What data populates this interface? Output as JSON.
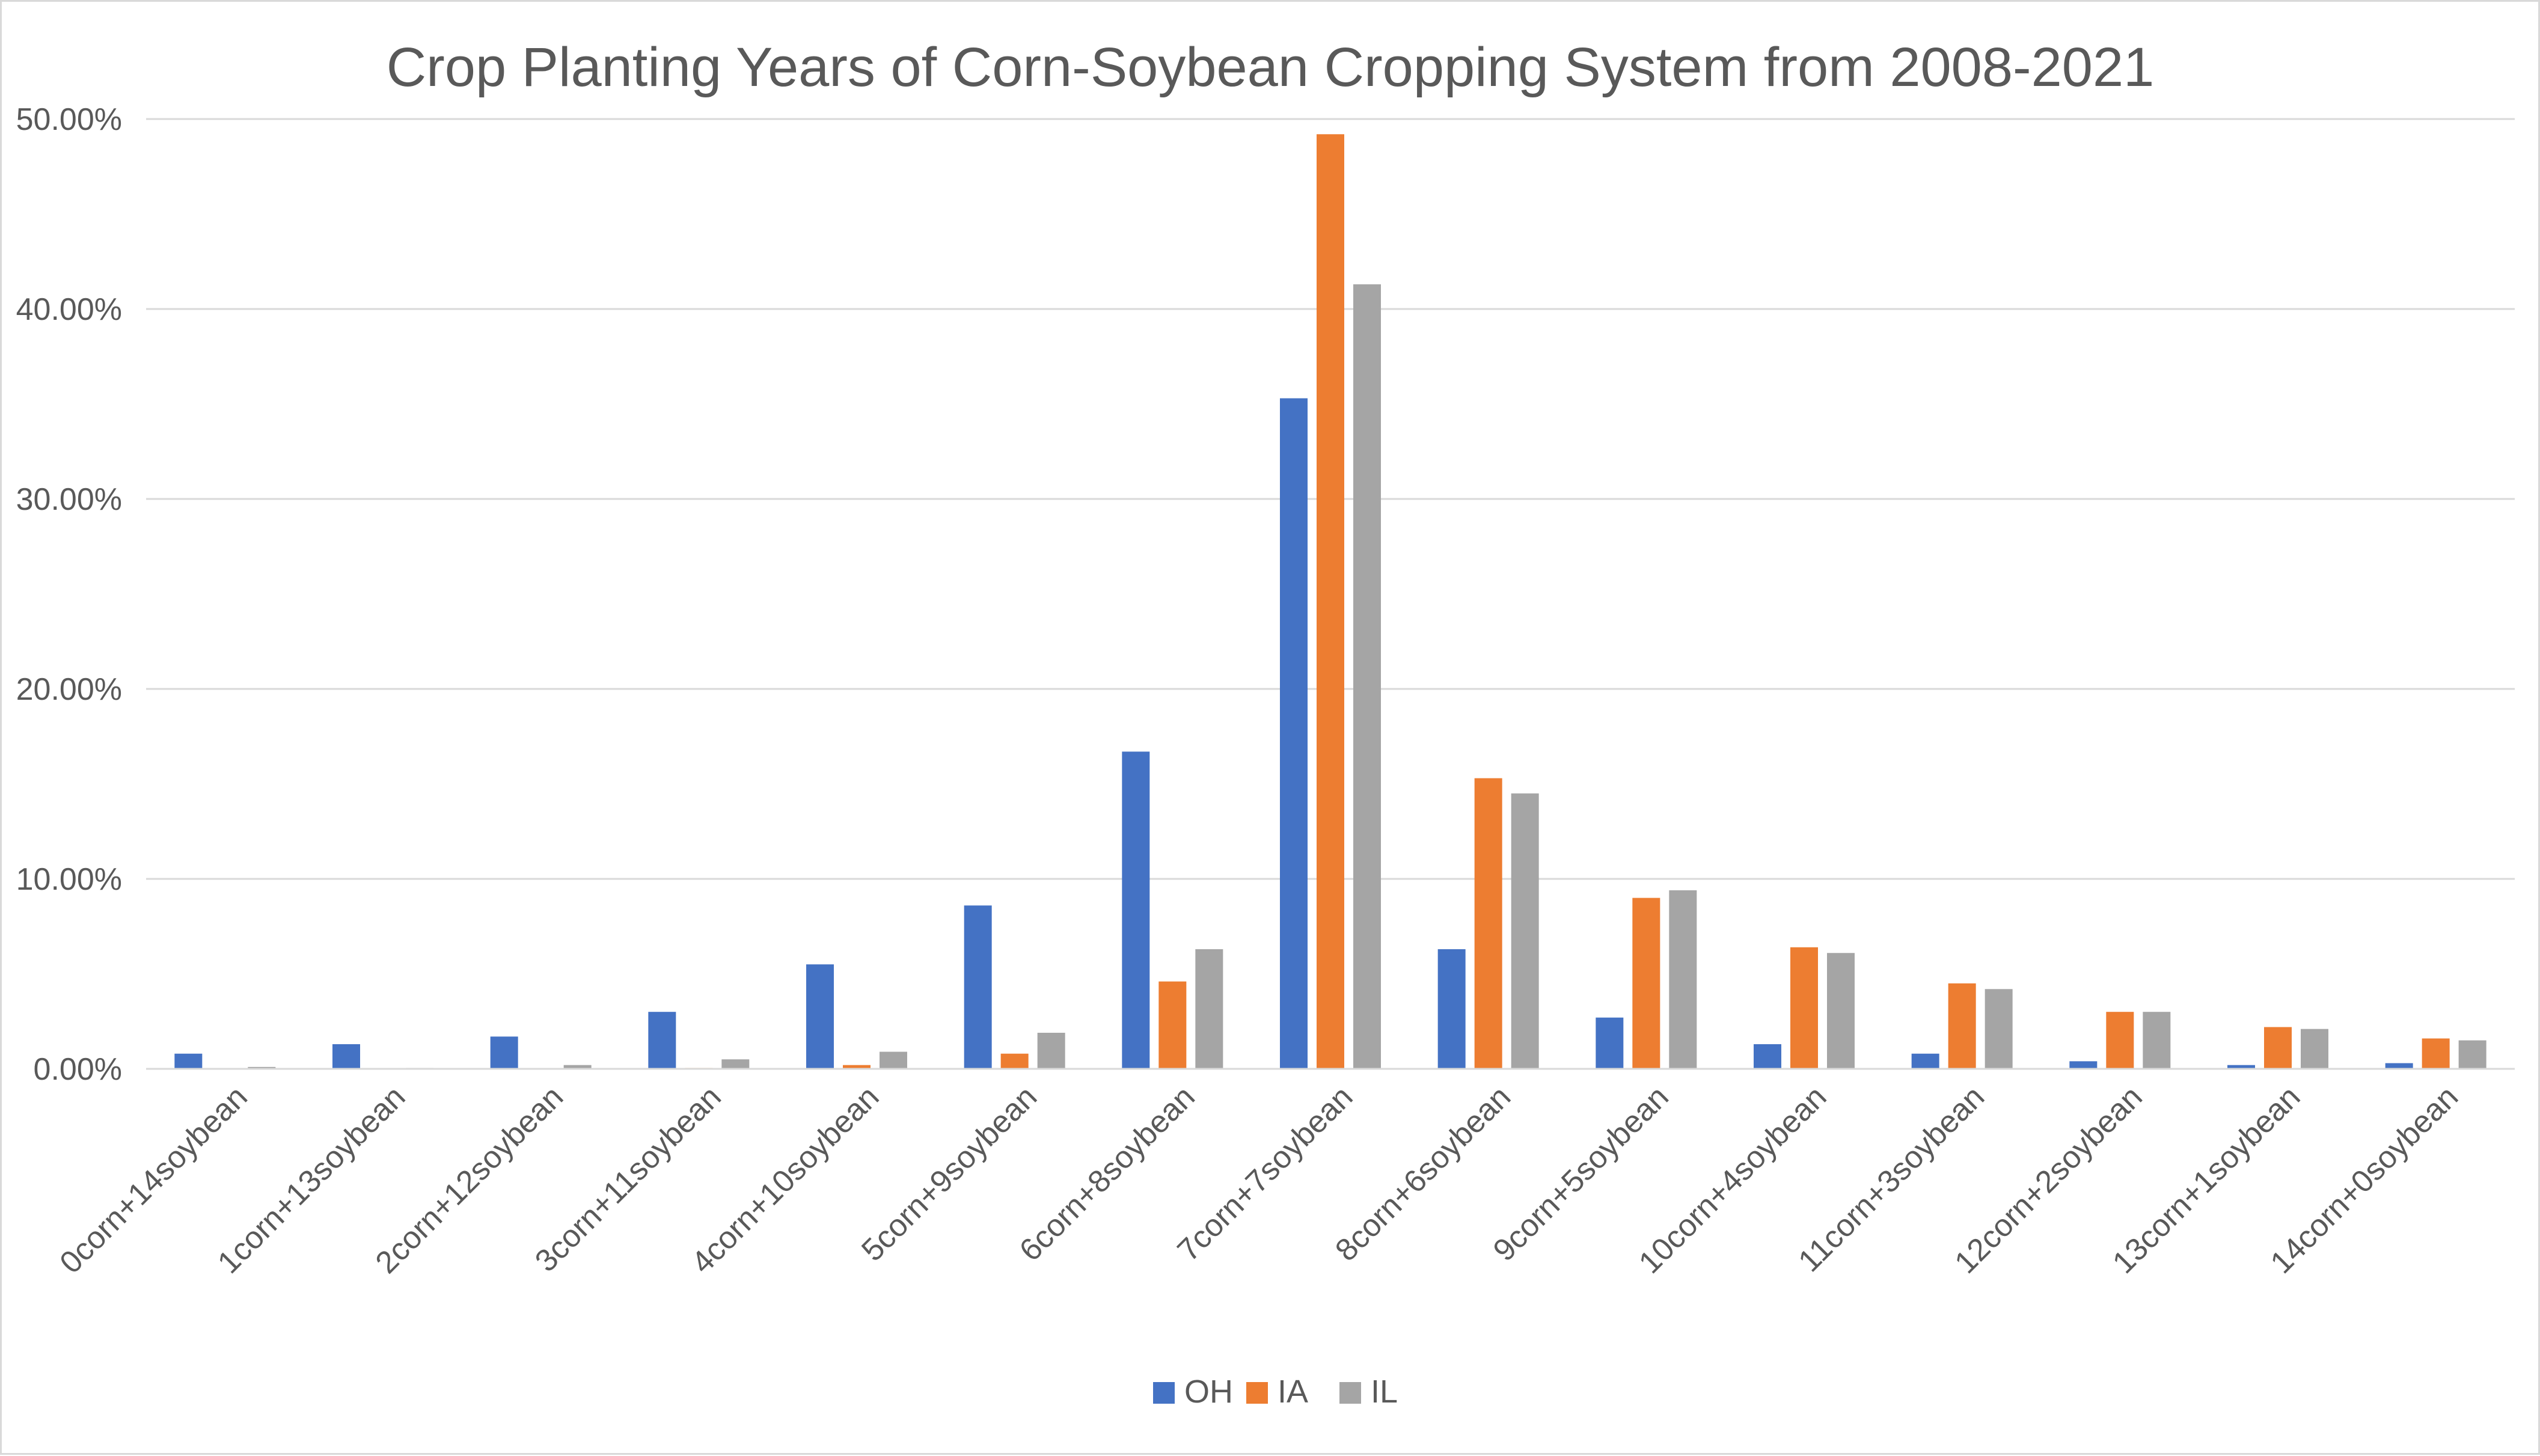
{
  "chart_data": {
    "type": "bar",
    "title": "Crop Planting Years of Corn-Soybean Cropping System from 2008-2021",
    "xlabel": "",
    "ylabel": "",
    "ylim": [
      0,
      0.5
    ],
    "y_ticks": [
      0,
      0.1,
      0.2,
      0.3,
      0.4,
      0.5
    ],
    "y_tick_labels": [
      "0.00%",
      "10.00%",
      "20.00%",
      "30.00%",
      "40.00%",
      "50.00%"
    ],
    "grid": true,
    "legend_position": "bottom",
    "categories": [
      "0corn+14soybean",
      "1corn+13soybean",
      "2corn+12soybean",
      "3corn+11soybean",
      "4corn+10soybean",
      "5corn+9soybean",
      "6corn+8soybean",
      "7corn+7soybean",
      "8corn+6soybean",
      "9corn+5soybean",
      "10corn+4soybean",
      "11corn+3soybean",
      "12corn+2soybean",
      "13corn+1soybean",
      "14corn+0soybean"
    ],
    "series": [
      {
        "name": "OH",
        "color": "#4472C4",
        "values": [
          0.008,
          0.013,
          0.017,
          0.03,
          0.055,
          0.086,
          0.167,
          0.353,
          0.063,
          0.027,
          0.013,
          0.008,
          0.004,
          0.002,
          0.003
        ]
      },
      {
        "name": "IA",
        "color": "#ED7D31",
        "values": [
          0.0,
          0.0,
          0.0,
          0.0005,
          0.002,
          0.008,
          0.046,
          0.492,
          0.153,
          0.09,
          0.064,
          0.045,
          0.03,
          0.022,
          0.016
        ]
      },
      {
        "name": "IL",
        "color": "#A5A5A5",
        "values": [
          0.001,
          0.0005,
          0.002,
          0.005,
          0.009,
          0.019,
          0.063,
          0.413,
          0.145,
          0.094,
          0.061,
          0.042,
          0.03,
          0.021,
          0.015
        ]
      }
    ]
  }
}
